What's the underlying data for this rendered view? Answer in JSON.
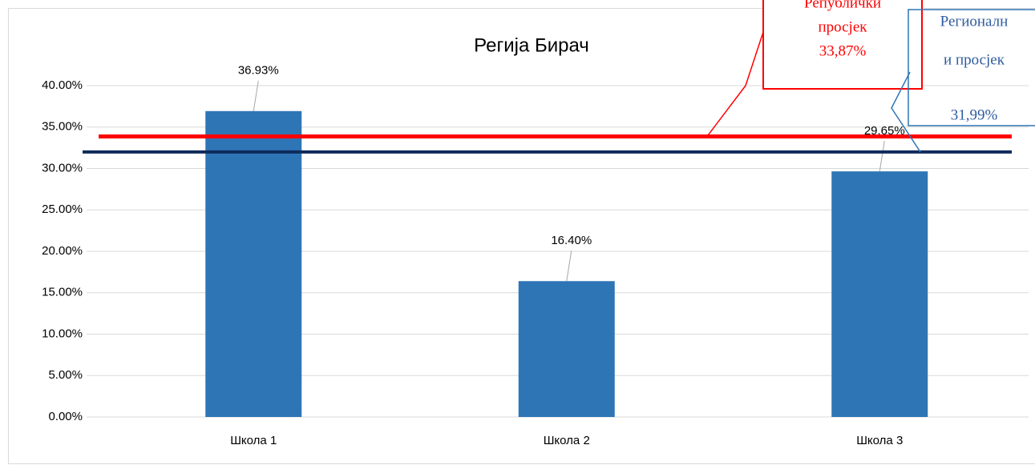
{
  "chart_data": {
    "type": "bar",
    "title": "Регија Бирач",
    "categories": [
      "Школа 1",
      "Школа 2",
      "Школа 3"
    ],
    "values": [
      36.93,
      16.4,
      29.65
    ],
    "value_labels": [
      "36.93%",
      "16.40%",
      "29.65%"
    ],
    "color": "#2e75b6",
    "ylim": [
      0,
      40
    ],
    "yticks": [
      {
        "value": 0,
        "label": "0.00%"
      },
      {
        "value": 5,
        "label": "5.00%"
      },
      {
        "value": 10,
        "label": "10.00%"
      },
      {
        "value": 15,
        "label": "15.00%"
      },
      {
        "value": 20,
        "label": "20.00%"
      },
      {
        "value": 25,
        "label": "25.00%"
      },
      {
        "value": 30,
        "label": "30.00%"
      },
      {
        "value": 35,
        "label": "35.00%"
      },
      {
        "value": 40,
        "label": "40.00%"
      }
    ],
    "grid": true,
    "reference_lines": [
      {
        "lines": [
          "Републички",
          "просјек",
          "33,87%"
        ],
        "value": 33.87,
        "color": "#ff0000"
      },
      {
        "lines": [
          "Регионалн",
          "и  просјек",
          "31,99%"
        ],
        "value": 31.99,
        "color": "#0e2a5c"
      }
    ]
  }
}
